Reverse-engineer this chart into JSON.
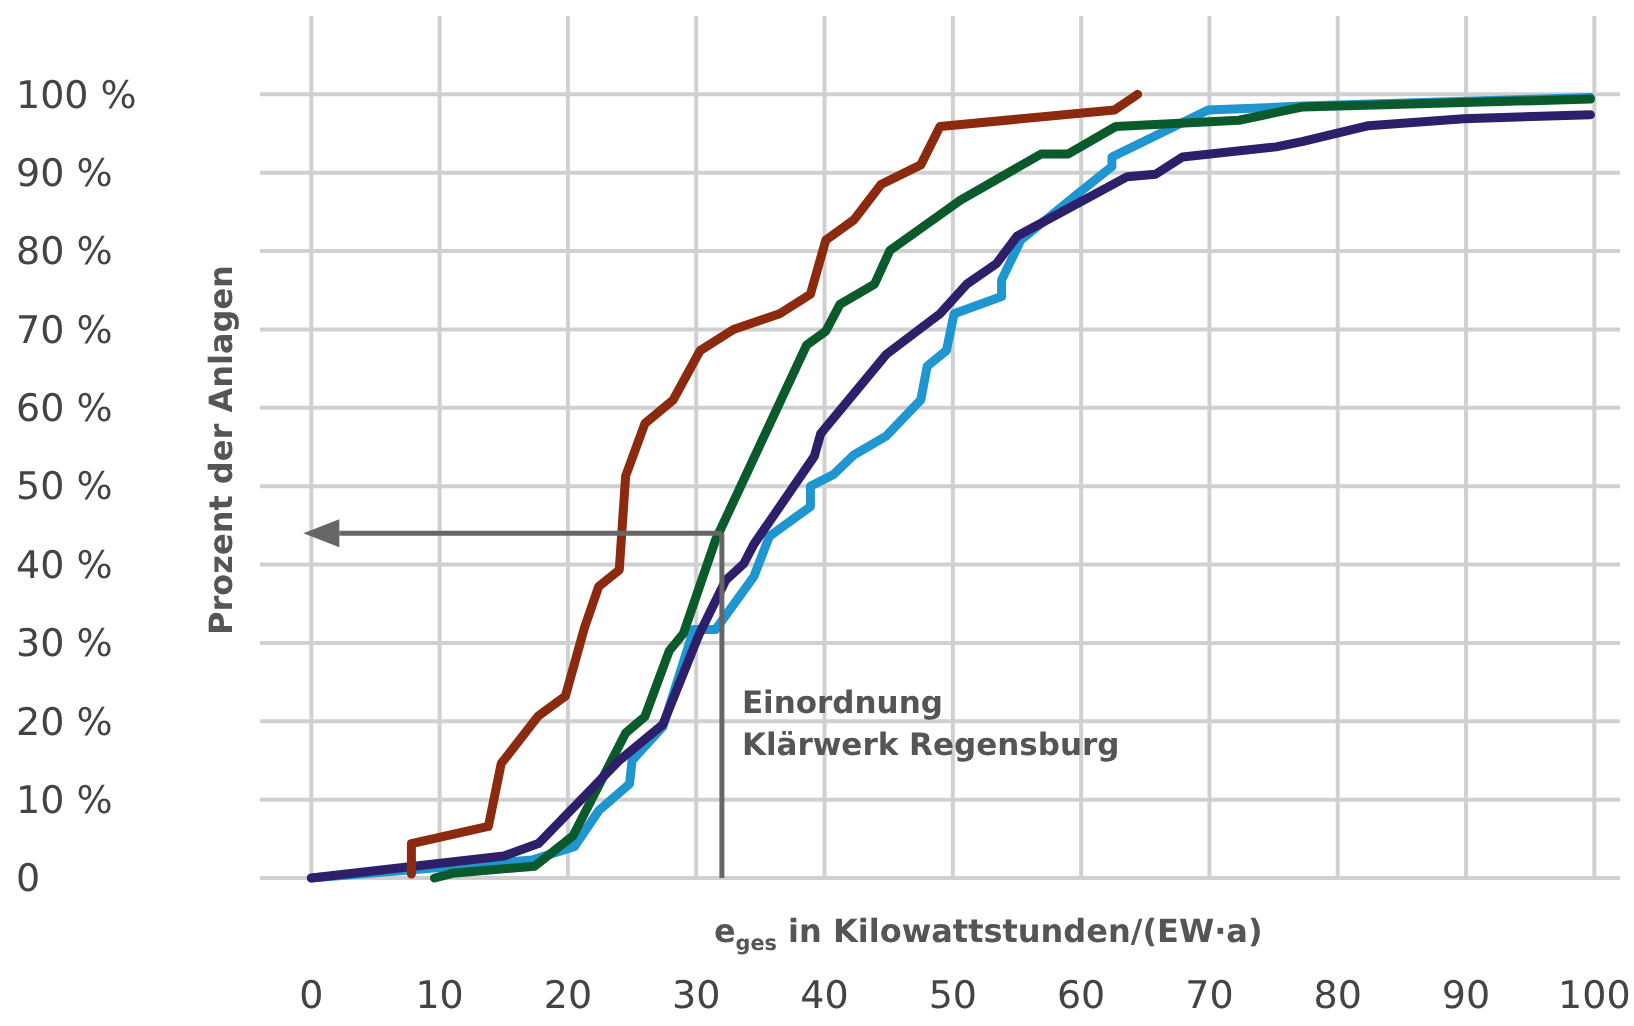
{
  "chart_data": {
    "type": "line",
    "xlabel": "e$_{ges}$ in Kilowattstunden/(EW·a)",
    "ylabel": "Prozent der Anlagen",
    "xlim": [
      -4,
      102
    ],
    "ylim": [
      0,
      110
    ],
    "xticks": [
      0,
      10,
      20,
      30,
      40,
      50,
      60,
      70,
      80,
      90,
      100
    ],
    "yticks": [
      0,
      {
        "value": 10,
        "label": "10 %"
      },
      {
        "value": 20,
        "label": "20 %"
      },
      {
        "value": 30,
        "label": "30 %"
      },
      {
        "value": 40,
        "label": "40 %"
      },
      {
        "value": 50,
        "label": "50 %"
      },
      {
        "value": 60,
        "label": "60 %"
      },
      {
        "value": 70,
        "label": "70 %"
      },
      {
        "value": 80,
        "label": "80 %"
      },
      {
        "value": 90,
        "label": "90 %"
      },
      {
        "value": 100,
        "label": "100 %"
      }
    ],
    "grid": true,
    "marker": "none",
    "line_style": "solid",
    "ref_lines": [
      {
        "axis": "x",
        "value": 32,
        "label": "Einordnung\nKlärwerk Regensburg",
        "color": "#666666"
      },
      {
        "axis": "y",
        "value": 44,
        "color": "#666666"
      }
    ],
    "series": [
      {
        "color": "#1f96cf",
        "x": [
          0,
          17.2,
          20.5,
          22.4,
          24.8,
          25,
          27.4,
          29.8,
          31.5,
          34.5,
          35.7,
          38.9,
          38.9,
          40.7,
          42.3,
          44.8,
          47.5,
          48,
          49.5,
          50.1,
          53.8,
          53.8,
          55.3,
          59.5,
          62.4,
          62.4,
          69.9,
          77.3,
          99.7
        ],
        "values": [
          0,
          2.3,
          4,
          8.6,
          12,
          15,
          19.3,
          31.7,
          31.7,
          38.5,
          43.6,
          47.4,
          50,
          51.5,
          54,
          56.4,
          61,
          65.3,
          67.3,
          72,
          74.2,
          76.3,
          81.4,
          87,
          90.8,
          92,
          98,
          98.5,
          99.6
        ]
      },
      {
        "color": "#0b5a2b",
        "x": [
          9.6,
          11,
          17.4,
          20.4,
          24.5,
          26,
          27.9,
          29,
          31.5,
          38.6,
          40.1,
          41.2,
          43.9,
          45.1,
          50.6,
          56.9,
          59,
          62.7,
          72.3,
          77.3,
          99.7
        ],
        "values": [
          0,
          0.6,
          1.5,
          5.4,
          18.5,
          20.6,
          29,
          31.2,
          43.1,
          68,
          69.8,
          73.2,
          75.8,
          80.1,
          86.5,
          92.4,
          92.4,
          95.9,
          96.7,
          98.4,
          99.4
        ]
      },
      {
        "color": "#2e1f6b",
        "x": [
          0,
          15,
          17.7,
          24,
          27.4,
          30.2,
          32.3,
          33.7,
          34.5,
          39.2,
          39.7,
          44.8,
          49,
          51.1,
          53.4,
          55,
          63.6,
          65.8,
          67.9,
          75.2,
          77.3,
          82.4,
          89.8,
          99.7
        ],
        "values": [
          0,
          2.8,
          4.4,
          15,
          19.6,
          31,
          38,
          40.1,
          42.6,
          53.8,
          56.7,
          66.8,
          72,
          75.8,
          78.4,
          81.9,
          89.5,
          89.8,
          92,
          93.3,
          94,
          96,
          96.9,
          97.4
        ]
      },
      {
        "color": "#8b2a0e",
        "x": [
          7.8,
          7.8,
          13.8,
          14.8,
          17.7,
          19.8,
          21.3,
          22.4,
          24,
          24.5,
          26,
          28.2,
          30.3,
          32.9,
          36.5,
          38.9,
          40.1,
          42.3,
          44.4,
          47.5,
          49,
          62.6,
          64.4
        ],
        "values": [
          0.5,
          4.4,
          6.6,
          14.6,
          20.7,
          23.2,
          32,
          37.2,
          39.3,
          51.3,
          58,
          61,
          67.3,
          70,
          72,
          74.5,
          81.4,
          84,
          88.5,
          91,
          95.9,
          98,
          100
        ]
      }
    ]
  }
}
